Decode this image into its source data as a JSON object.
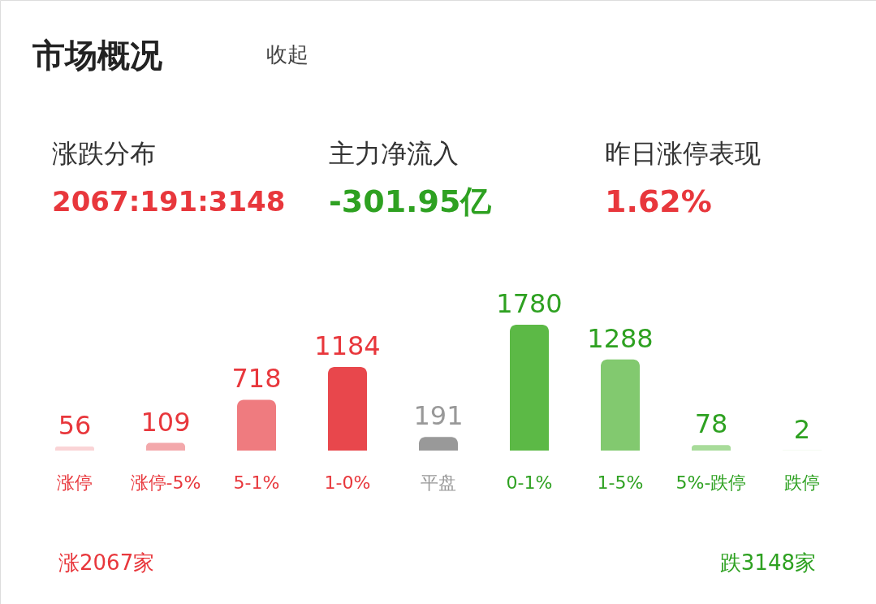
{
  "chart_data": {
    "type": "bar",
    "title": "市场概况",
    "categories": [
      "涨停",
      "涨停-5%",
      "5-1%",
      "1-0%",
      "平盘",
      "0-1%",
      "1-5%",
      "5%-跌停",
      "跌停"
    ],
    "values": [
      56,
      109,
      718,
      1184,
      191,
      1780,
      1288,
      78,
      2
    ],
    "colors": [
      "#fad4d6",
      "#f3a8ab",
      "#ef7b7f",
      "#e8474c",
      "#999999",
      "#5cb946",
      "#82c96f",
      "#a8dc9a",
      "#d4eecc"
    ],
    "data_labels": true,
    "annotations": [
      "收起",
      "涨跌分布",
      "2067:191:3148",
      "主力净流入",
      "-301.95亿",
      "昨日涨停表现",
      "1.62%",
      "涨2067家",
      "跌3148家"
    ]
  }
}
